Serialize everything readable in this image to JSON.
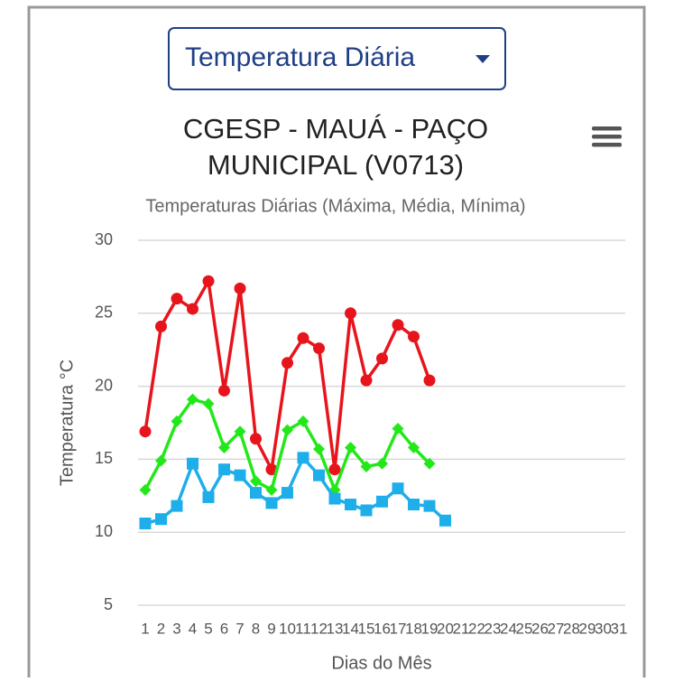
{
  "dropdown": {
    "label": "Temperatura Diária"
  },
  "chart_data": {
    "type": "line",
    "title": "CGESP - MAUÁ - PAÇO MUNICIPAL (V0713)",
    "subtitle": "Temperaturas Diárias (Máxima, Média, Mínima)",
    "y_label": "Temperatura °C",
    "x_label": "Dias do Mês",
    "categories": [
      "1",
      "2",
      "3",
      "4",
      "5",
      "6",
      "7",
      "8",
      "9",
      "10",
      "11",
      "12",
      "13",
      "14",
      "15",
      "16",
      "17",
      "18",
      "19",
      "20",
      "21",
      "22",
      "23",
      "24",
      "25",
      "26",
      "27",
      "28",
      "29",
      "30",
      "31"
    ],
    "series": [
      {
        "color": "#e8141b",
        "marker": "circle",
        "values": [
          16.9,
          24.1,
          26.0,
          25.3,
          27.2,
          19.7,
          26.7,
          16.4,
          14.3,
          21.6,
          23.3,
          22.6,
          14.3,
          25.0,
          20.4,
          21.9,
          24.2,
          23.4,
          20.4,
          null,
          null,
          null,
          null,
          null,
          null,
          null,
          null,
          null,
          null,
          null,
          null
        ]
      },
      {
        "color": "#22e81a",
        "marker": "diamond",
        "values": [
          12.9,
          14.9,
          17.6,
          19.1,
          18.8,
          15.8,
          16.9,
          13.5,
          12.9,
          17.0,
          17.6,
          15.7,
          12.9,
          15.8,
          14.5,
          14.7,
          17.1,
          15.8,
          14.7,
          null,
          null,
          null,
          null,
          null,
          null,
          null,
          null,
          null,
          null,
          null,
          null
        ]
      },
      {
        "color": "#1eaeea",
        "marker": "square",
        "values": [
          10.6,
          10.9,
          11.8,
          14.7,
          12.4,
          14.3,
          13.9,
          12.7,
          12.0,
          12.7,
          15.1,
          13.9,
          12.3,
          11.9,
          11.5,
          12.1,
          13.0,
          11.9,
          11.8,
          10.8,
          null,
          null,
          null,
          null,
          null,
          null,
          null,
          null,
          null,
          null,
          null
        ]
      }
    ],
    "ylim": [
      5,
      30
    ],
    "yticks": [
      5,
      10,
      15,
      20,
      25,
      30
    ],
    "grid": true
  }
}
